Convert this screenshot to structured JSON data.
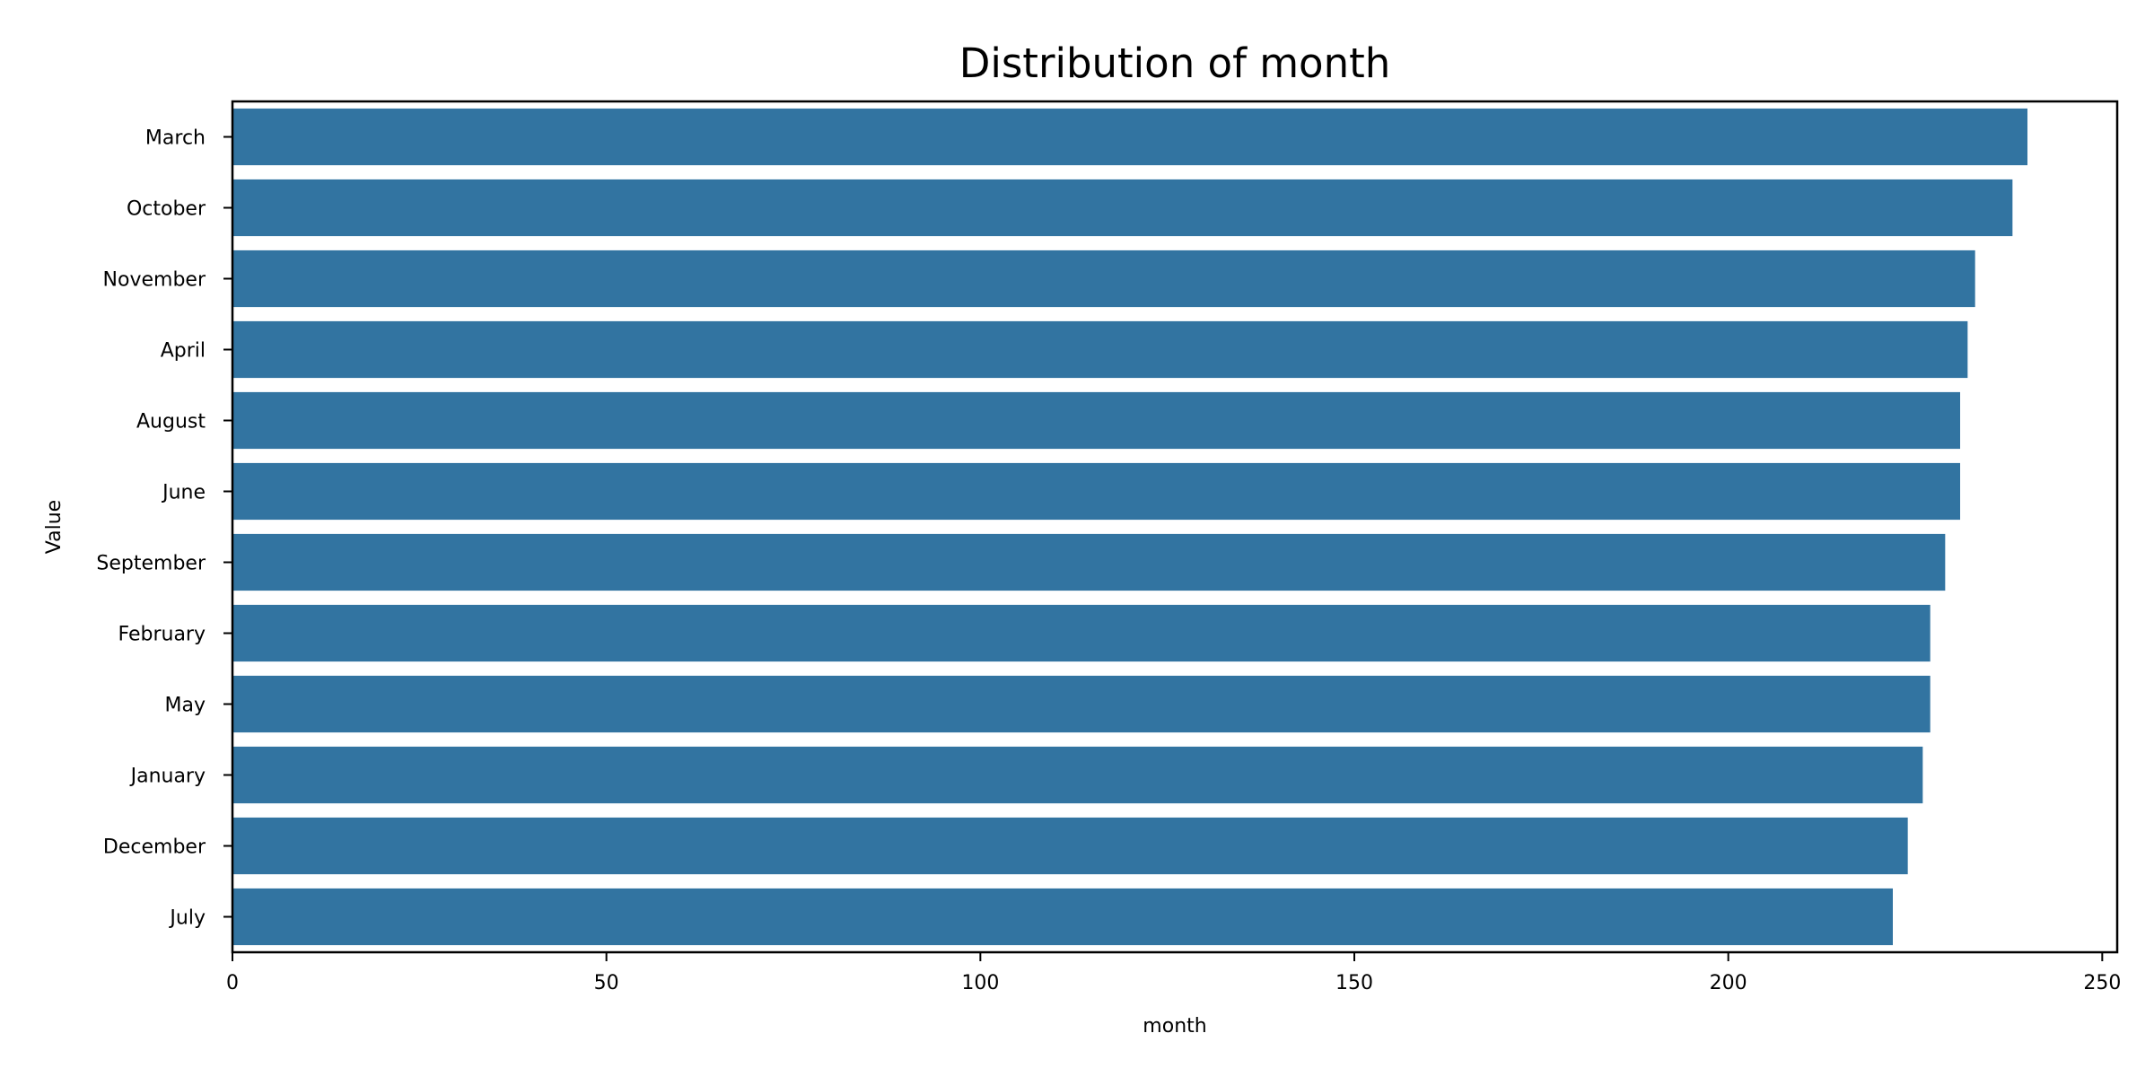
{
  "chart_data": {
    "type": "bar",
    "orientation": "horizontal",
    "title": "Distribution of month",
    "xlabel": "month",
    "ylabel": "Value",
    "categories": [
      "March",
      "October",
      "November",
      "April",
      "August",
      "June",
      "September",
      "February",
      "May",
      "January",
      "December",
      "July"
    ],
    "values": [
      240,
      238,
      233,
      232,
      231,
      231,
      229,
      227,
      227,
      226,
      224,
      222
    ],
    "xlim": [
      0,
      252
    ],
    "xticks": [
      0,
      50,
      100,
      150,
      200,
      250
    ],
    "grid": false,
    "bar_color": "#3274a1"
  }
}
